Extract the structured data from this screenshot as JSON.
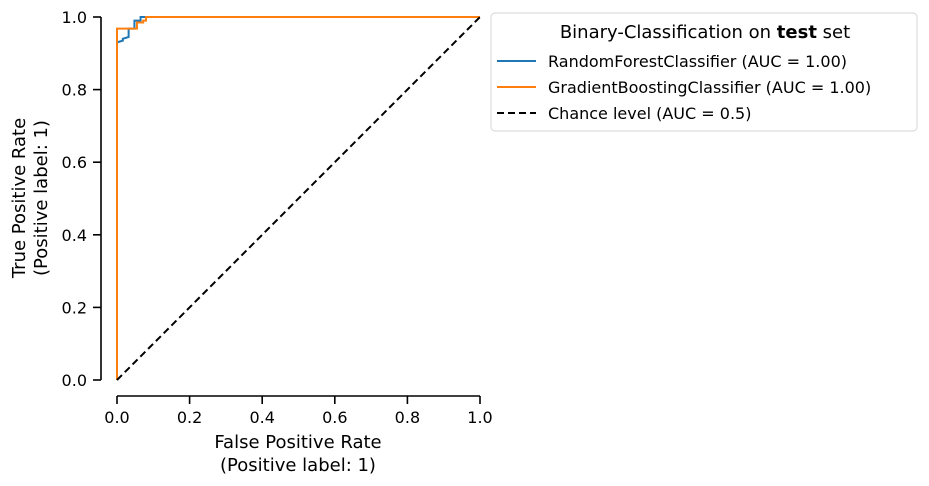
{
  "chart_data": {
    "type": "line",
    "title": "",
    "xlabel": [
      "False Positive Rate",
      "(Positive label: 1)"
    ],
    "ylabel": [
      "True Positive Rate",
      "(Positive label: 1)"
    ],
    "xlim": [
      0.0,
      1.0
    ],
    "ylim": [
      0.0,
      1.0
    ],
    "xticks": [
      "0.0",
      "0.2",
      "0.4",
      "0.6",
      "0.8",
      "1.0"
    ],
    "yticks": [
      "0.0",
      "0.2",
      "0.4",
      "0.6",
      "0.8",
      "1.0"
    ],
    "grid": false,
    "legend": {
      "placement": "outside upper right",
      "title_prefix": "Binary-Classification on ",
      "title_bold": "test",
      "title_suffix": " set"
    },
    "series": [
      {
        "name": "RandomForestClassifier (AUC = 1.00)",
        "color": "#1f77b4",
        "style": "solid",
        "x": [
          0.0,
          0.0,
          0.0,
          0.016,
          0.016,
          0.032,
          0.032,
          0.048,
          0.048,
          0.065,
          0.065,
          0.08,
          0.08,
          1.0
        ],
        "y": [
          0.0,
          0.923,
          0.93,
          0.935,
          0.94,
          0.945,
          0.968,
          0.968,
          0.99,
          0.99,
          1.0,
          1.0,
          1.0,
          1.0
        ]
      },
      {
        "name": "GradientBoostingClassifier (AUC = 1.00)",
        "color": "#ff7f0e",
        "style": "solid",
        "x": [
          0.0,
          0.0,
          0.0,
          0.055,
          0.055,
          0.072,
          0.072,
          0.08,
          0.08,
          1.0
        ],
        "y": [
          0.0,
          0.935,
          0.968,
          0.968,
          0.985,
          0.985,
          0.99,
          0.99,
          1.0,
          1.0
        ]
      },
      {
        "name": "Chance level (AUC = 0.5)",
        "color": "#000000",
        "style": "dashed",
        "x": [
          0.0,
          1.0
        ],
        "y": [
          0.0,
          1.0
        ]
      }
    ]
  }
}
